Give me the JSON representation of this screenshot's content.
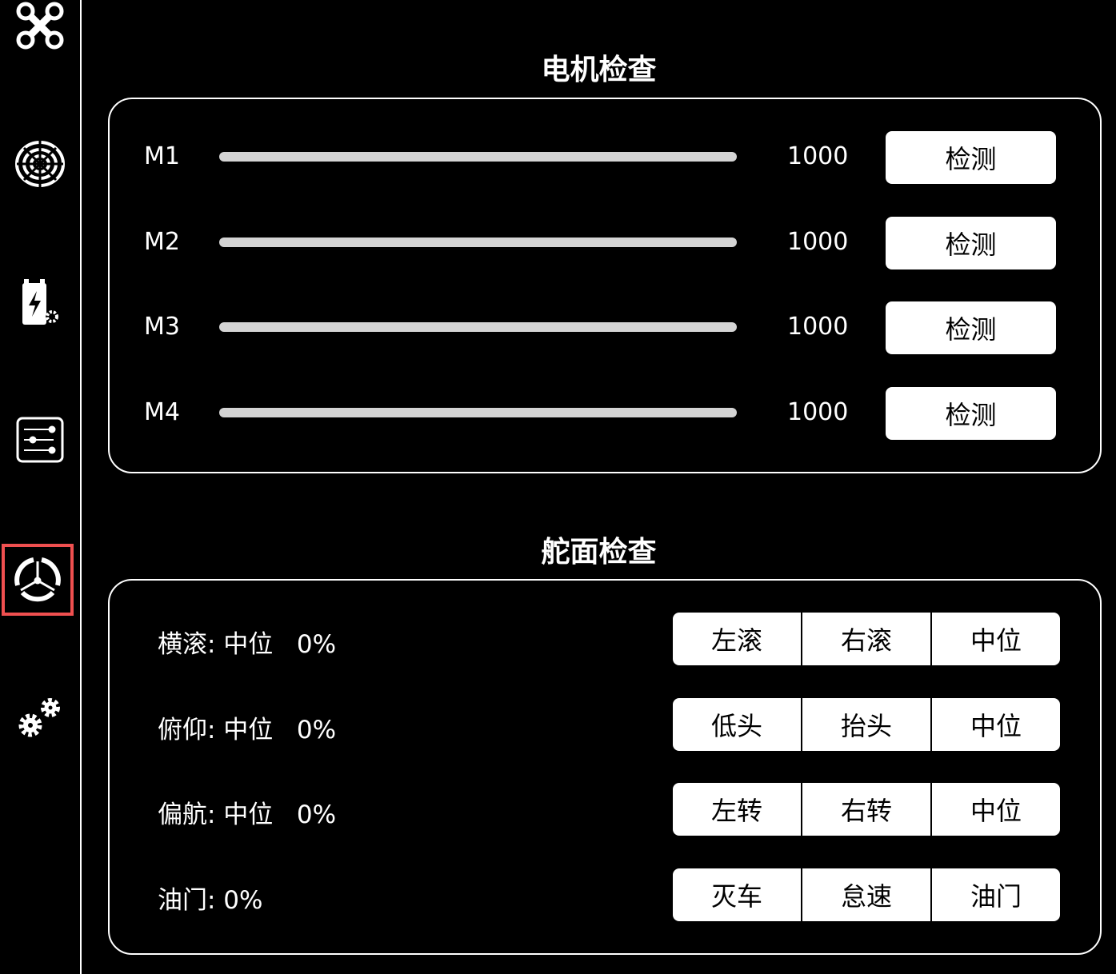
{
  "sidebar": {
    "items": [
      {
        "icon": "drone-icon"
      },
      {
        "icon": "radar-icon"
      },
      {
        "icon": "battery-settings-icon"
      },
      {
        "icon": "sliders-icon"
      },
      {
        "icon": "propeller-icon",
        "active": true
      },
      {
        "icon": "gears-icon"
      }
    ],
    "active_color": "#f05050"
  },
  "motor": {
    "title": "电机检查",
    "rows": [
      {
        "label": "M1",
        "value": "1000",
        "button": "检测"
      },
      {
        "label": "M2",
        "value": "1000",
        "button": "检测"
      },
      {
        "label": "M3",
        "value": "1000",
        "button": "检测"
      },
      {
        "label": "M4",
        "value": "1000",
        "button": "检测"
      }
    ]
  },
  "control": {
    "title": "舵面检查",
    "rows": [
      {
        "label": "横滚: 中位   0%",
        "buttons": [
          "左滚",
          "右滚",
          "中位"
        ]
      },
      {
        "label": "俯仰: 中位   0%",
        "buttons": [
          "低头",
          "抬头",
          "中位"
        ]
      },
      {
        "label": "偏航: 中位   0%",
        "buttons": [
          "左转",
          "右转",
          "中位"
        ]
      },
      {
        "label": "油门: 0%",
        "buttons": [
          "灭车",
          "怠速",
          "油门"
        ]
      }
    ]
  }
}
